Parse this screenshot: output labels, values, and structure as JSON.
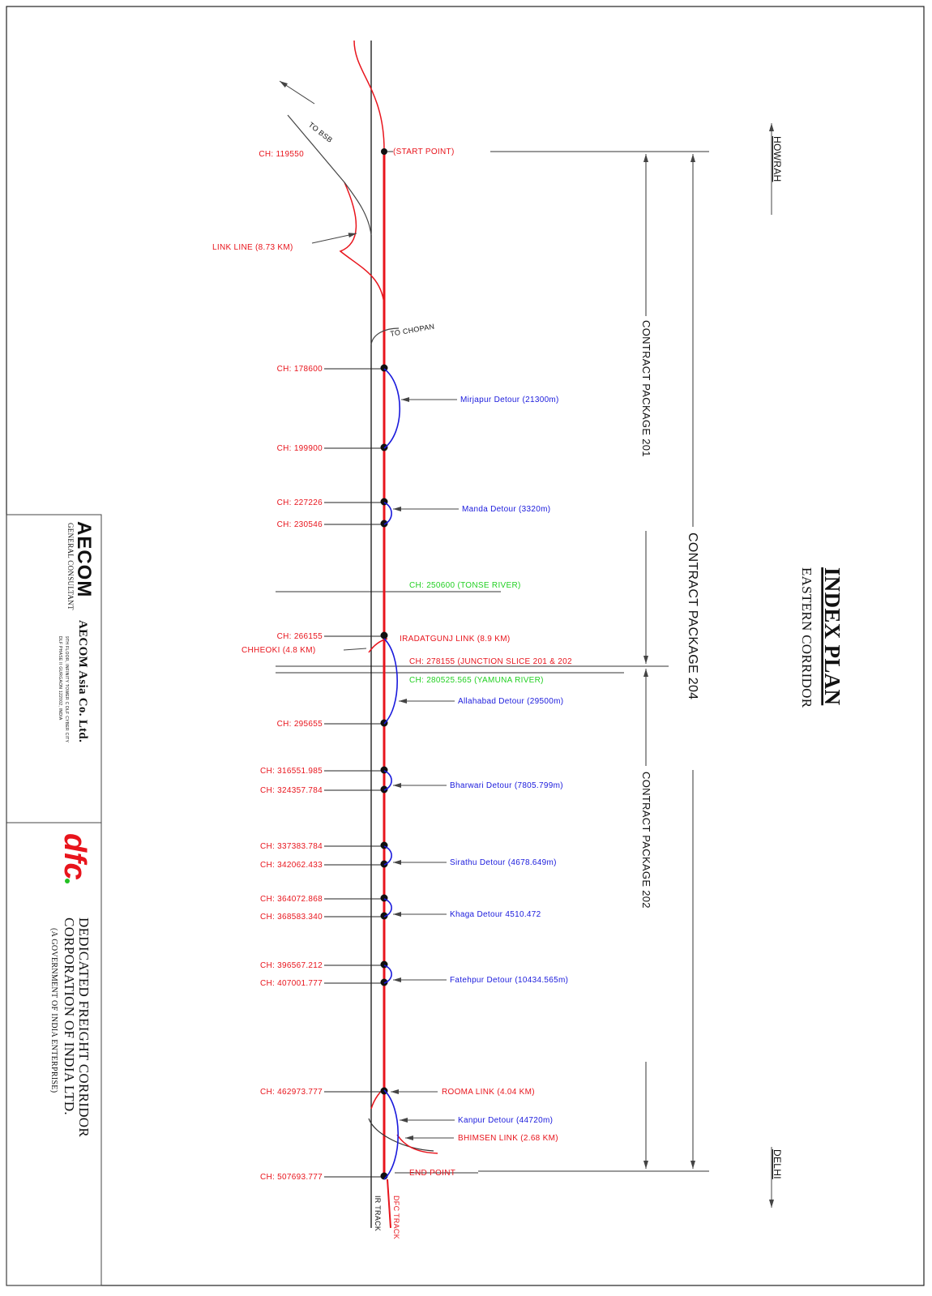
{
  "title": "INDEX PLAN",
  "subtitle": "EASTERN CORRIDOR",
  "directions": [
    "HOWRAH",
    "DELHI"
  ],
  "packages": [
    "CONTRACT PACKAGE  201",
    "CONTRACT PACKAGE  204",
    "CONTRACT PACKAGE  202"
  ],
  "chainages": [
    "CH: 119550",
    "CH: 178600",
    "CH: 199900",
    "CH: 227226",
    "CH: 230546",
    "CH: 266155",
    "CH: 295655",
    "CH: 316551.985",
    "CH: 324357.784",
    "CH: 337383.784",
    "CH: 342062.433",
    "CH: 364072.868",
    "CH: 368583.340",
    "CH: 396567.212",
    "CH: 407001.777",
    "CH: 462973.777",
    "CH: 507693.777"
  ],
  "detours": [
    "Mirjapur Detour (21300m)",
    "Manda Detour (3320m)",
    "Allahabad Detour (29500m)",
    "Bharwari Detour (7805.799m)",
    "Sirathu Detour (4678.649m)",
    "Khaga Detour 4510.472",
    "Fatehpur Detour (10434.565m)",
    "Kanpur Detour (44720m)"
  ],
  "links": [
    "LINK LINE (8.73 KM)",
    "IRADATGUNJ LINK (8.9 KM)",
    "CHHEOKI (4.8 KM)",
    "ROOMA LINK (4.04 KM)",
    "BHIMSEN LINK (2.68 KM)"
  ],
  "points": [
    "(START POINT)",
    "END POINT"
  ],
  "rivers": [
    "CH: 250600 (TONSE RIVER)",
    "CH: 280525.565 (YAMUNA RIVER)"
  ],
  "junction": "CH: 278155 (JUNCTION SLICE 201 & 202",
  "branches": [
    "TO BSB",
    "TO CHOPAN"
  ],
  "tracks": [
    "DFC TRACK",
    "IR TRACK"
  ],
  "title_block": {
    "consultant_role": "GENERAL CONSULTANT",
    "consultant_logo": "AECOM",
    "consultant": "AECOM Asia Co. Ltd.",
    "consultant_address": [
      "9TH FLOOR, INFINITY TOWER C DLF CYBER CITY",
      "DLF PHASE II GURGAON 122002, INDIA"
    ],
    "client_logo": "dfc",
    "client": [
      "DEDICATED FREIGHT CORRIDOR",
      "CORPORATION OF INDIA LTD."
    ],
    "client_note": "(A GOVERNMENT OF INDIA ENTERPRISE)"
  }
}
